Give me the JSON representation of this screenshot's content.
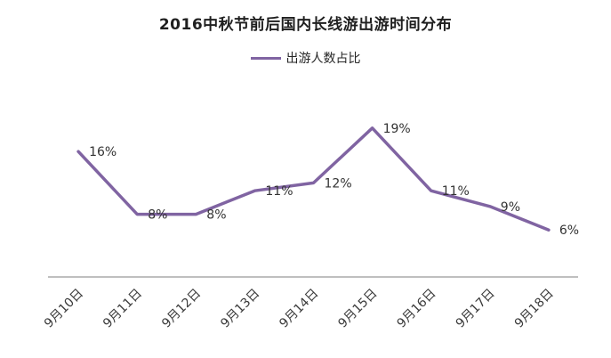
{
  "header": {
    "title": "2016中秋节前后国内长线游出游时间分布"
  },
  "legend": {
    "label": "出游人数占比"
  },
  "colors": {
    "line": "#8064A2",
    "axis_line": "#BFBFBF",
    "data_label": "#333333",
    "tick_label": "#3b3b3b",
    "title": "#1f1f1f"
  },
  "chart_data": {
    "type": "line",
    "title": "2016中秋节前后国内长线游出游时间分布",
    "categories": [
      "9月10日",
      "9月11日",
      "9月12日",
      "9月13日",
      "9月14日",
      "9月15日",
      "9月16日",
      "9月17日",
      "9月18日"
    ],
    "series": [
      {
        "name": "出游人数占比",
        "values": [
          16,
          8,
          8,
          11,
          12,
          19,
          11,
          9,
          6
        ]
      }
    ],
    "data_labels": [
      "16%",
      "8%",
      "8%",
      "11%",
      "12%",
      "19%",
      "11%",
      "9%",
      "6%"
    ],
    "xlabel": "",
    "ylabel": "",
    "ylim": [
      0,
      20
    ],
    "grid": false,
    "legend_position": "top",
    "x_tick_rotation": 45
  }
}
